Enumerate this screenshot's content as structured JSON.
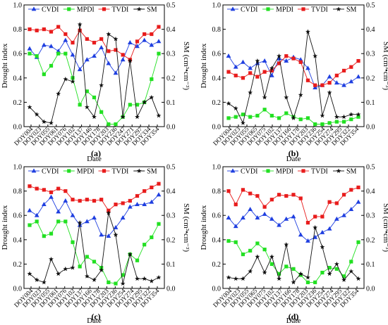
{
  "colors": {
    "CVDI": "#1f3fe0",
    "MPDI": "#22e022",
    "TVDI": "#e81c1c",
    "SM": "#111111"
  },
  "shared": {
    "xlabel": "Date",
    "ylabel_left": "Drought index",
    "ylabel_right": "SM (cm³•cm⁻³)",
    "y_left_range": [
      0.0,
      1.0
    ],
    "y_left_ticks": [
      "0.0",
      "0.2",
      "0.4",
      "0.6",
      "0.8",
      "1.0"
    ],
    "y_right_range": [
      0.0,
      0.5
    ],
    "y_right_ticks": [
      "0.0",
      "0.1",
      "0.2",
      "0.3",
      "0.4",
      "0.5"
    ],
    "legend_position": "top"
  },
  "chart_data": [
    {
      "type": "line",
      "panel_label": "(a)",
      "x_ticks": [
        "DOY004",
        "DOY023",
        "DOY055",
        "DOY061",
        "DOY076",
        "DOY102",
        "DOY137",
        "DOY146",
        "DOY178",
        "DOY203",
        "DOY236",
        "DOY247",
        "DOY271",
        "DOY297",
        "DOY334",
        "DOY354"
      ],
      "n_points": 19,
      "series": [
        {
          "name": "CVDI",
          "marker": "triangle",
          "axis": "left",
          "values": [
            0.64,
            0.57,
            0.67,
            0.66,
            0.62,
            0.71,
            0.59,
            0.47,
            0.55,
            0.58,
            0.65,
            0.52,
            0.44,
            0.55,
            0.69,
            0.66,
            0.71,
            0.67,
            0.7
          ]
        },
        {
          "name": "MPDI",
          "marker": "square",
          "axis": "left",
          "values": [
            0.6,
            0.58,
            0.43,
            0.5,
            0.6,
            0.6,
            0.4,
            0.18,
            0.29,
            0.24,
            0.12,
            0.02,
            0.02,
            0.08,
            0.18,
            0.18,
            0.2,
            0.39,
            0.6
          ]
        },
        {
          "name": "TVDI",
          "marker": "square",
          "axis": "left",
          "values": [
            0.8,
            0.79,
            0.8,
            0.78,
            0.82,
            0.76,
            0.69,
            0.79,
            0.72,
            0.69,
            0.72,
            0.62,
            0.63,
            0.59,
            0.55,
            0.7,
            0.76,
            0.76,
            0.82
          ]
        },
        {
          "name": "SM",
          "marker": "star",
          "axis": "right",
          "values": [
            0.08,
            0.05,
            0.02,
            0.015,
            0.135,
            0.195,
            0.185,
            0.42,
            0.08,
            0.04,
            0.17,
            0.38,
            0.36,
            0.04,
            0.27,
            0.04,
            0.1,
            0.12,
            0.045
          ]
        }
      ]
    },
    {
      "type": "line",
      "panel_label": "(b)",
      "x_ticks": [
        "DOY004",
        "DOY023",
        "DOY055",
        "DOY065",
        "DOY075",
        "DOY102",
        "DOY137",
        "DOY166",
        "DOY178",
        "DOY203",
        "DOY236",
        "DOY254",
        "DOY274",
        "DOY295",
        "DOY322",
        "DOY354"
      ],
      "n_points": 19,
      "series": [
        {
          "name": "CVDI",
          "marker": "triangle",
          "axis": "left",
          "values": [
            0.58,
            0.49,
            0.53,
            0.48,
            0.52,
            0.54,
            0.42,
            0.56,
            0.54,
            0.57,
            0.55,
            0.48,
            0.32,
            0.34,
            0.41,
            0.36,
            0.34,
            0.37,
            0.41
          ]
        },
        {
          "name": "MPDI",
          "marker": "square",
          "axis": "left",
          "values": [
            0.07,
            0.08,
            0.1,
            0.08,
            0.09,
            0.14,
            0.09,
            0.07,
            0.11,
            0.08,
            0.06,
            0.07,
            0.02,
            0.02,
            0.03,
            0.04,
            0.04,
            0.06,
            0.08
          ]
        },
        {
          "name": "TVDI",
          "marker": "square",
          "axis": "left",
          "values": [
            0.45,
            0.42,
            0.4,
            0.44,
            0.41,
            0.45,
            0.46,
            0.52,
            0.58,
            0.56,
            0.53,
            0.38,
            0.34,
            0.34,
            0.36,
            0.42,
            0.46,
            0.49,
            0.54
          ]
        },
        {
          "name": "SM",
          "marker": "star",
          "axis": "right",
          "values": [
            0.095,
            0.075,
            0.015,
            0.14,
            0.27,
            0.12,
            0.24,
            0.29,
            0.12,
            0.035,
            0.13,
            0.39,
            0.29,
            0.045,
            0.14,
            0.04,
            0.04,
            0.05,
            0.05
          ]
        }
      ]
    },
    {
      "type": "line",
      "panel_label": "(c)",
      "x_ticks": [
        "DOY004",
        "DOY023",
        "DOY055",
        "DOY061",
        "DOY076",
        "DOY102",
        "DOY137",
        "DOY166",
        "DOY178",
        "DOY203",
        "DOY236",
        "DOY254",
        "DOY274",
        "DOY295",
        "DOY322",
        "DOY354"
      ],
      "n_points": 19,
      "series": [
        {
          "name": "CVDI",
          "marker": "triangle",
          "axis": "left",
          "values": [
            0.64,
            0.6,
            0.69,
            0.75,
            0.63,
            0.72,
            0.6,
            0.52,
            0.55,
            0.58,
            0.44,
            0.43,
            0.5,
            0.58,
            0.67,
            0.69,
            0.69,
            0.71,
            0.77
          ]
        },
        {
          "name": "MPDI",
          "marker": "square",
          "axis": "left",
          "values": [
            0.52,
            0.55,
            0.43,
            0.45,
            0.55,
            0.55,
            0.38,
            0.18,
            0.26,
            0.22,
            0.17,
            0.05,
            0.04,
            0.11,
            0.28,
            0.23,
            0.36,
            0.42,
            0.53
          ]
        },
        {
          "name": "TVDI",
          "marker": "square",
          "axis": "left",
          "values": [
            0.84,
            0.82,
            0.81,
            0.79,
            0.82,
            0.8,
            0.73,
            0.72,
            0.73,
            0.72,
            0.73,
            0.64,
            0.69,
            0.7,
            0.72,
            0.76,
            0.8,
            0.83,
            0.86
          ]
        },
        {
          "name": "SM",
          "marker": "star",
          "axis": "right",
          "values": [
            0.06,
            0.035,
            0.025,
            0.12,
            0.06,
            0.08,
            0.085,
            0.27,
            0.05,
            0.035,
            0.075,
            0.31,
            0.22,
            0.02,
            0.14,
            0.04,
            0.04,
            0.03,
            0.045
          ]
        }
      ]
    },
    {
      "type": "line",
      "panel_label": "(d)",
      "x_ticks": [
        "DOY004",
        "DOY023",
        "DOY055",
        "DOY065",
        "DOY075",
        "DOY102",
        "DOY137",
        "DOY166",
        "DOY178",
        "DOY203",
        "DOY236",
        "DOY254",
        "DOY274",
        "DOY295",
        "DOY322",
        "DOY354"
      ],
      "n_points": 19,
      "series": [
        {
          "name": "CVDI",
          "marker": "triangle",
          "axis": "left",
          "values": [
            0.58,
            0.51,
            0.58,
            0.65,
            0.58,
            0.61,
            0.57,
            0.52,
            0.57,
            0.59,
            0.44,
            0.39,
            0.42,
            0.46,
            0.49,
            0.57,
            0.6,
            0.65,
            0.71
          ]
        },
        {
          "name": "MPDI",
          "marker": "square",
          "axis": "left",
          "values": [
            0.39,
            0.38,
            0.28,
            0.31,
            0.37,
            0.32,
            0.2,
            0.12,
            0.18,
            0.16,
            0.11,
            0.05,
            0.05,
            0.13,
            0.17,
            0.16,
            0.1,
            0.22,
            0.38
          ]
        },
        {
          "name": "TVDI",
          "marker": "square",
          "axis": "left",
          "values": [
            0.8,
            0.69,
            0.81,
            0.78,
            0.76,
            0.67,
            0.73,
            0.77,
            0.76,
            0.77,
            0.74,
            0.54,
            0.59,
            0.59,
            0.71,
            0.7,
            0.77,
            0.81,
            0.83
          ]
        },
        {
          "name": "SM",
          "marker": "star",
          "axis": "right",
          "values": [
            0.045,
            0.04,
            0.04,
            0.07,
            0.13,
            0.065,
            0.13,
            0.04,
            0.18,
            0.025,
            0.06,
            0.045,
            0.25,
            0.17,
            0.06,
            0.1,
            0.035,
            0.07,
            0.04
          ]
        }
      ]
    }
  ]
}
